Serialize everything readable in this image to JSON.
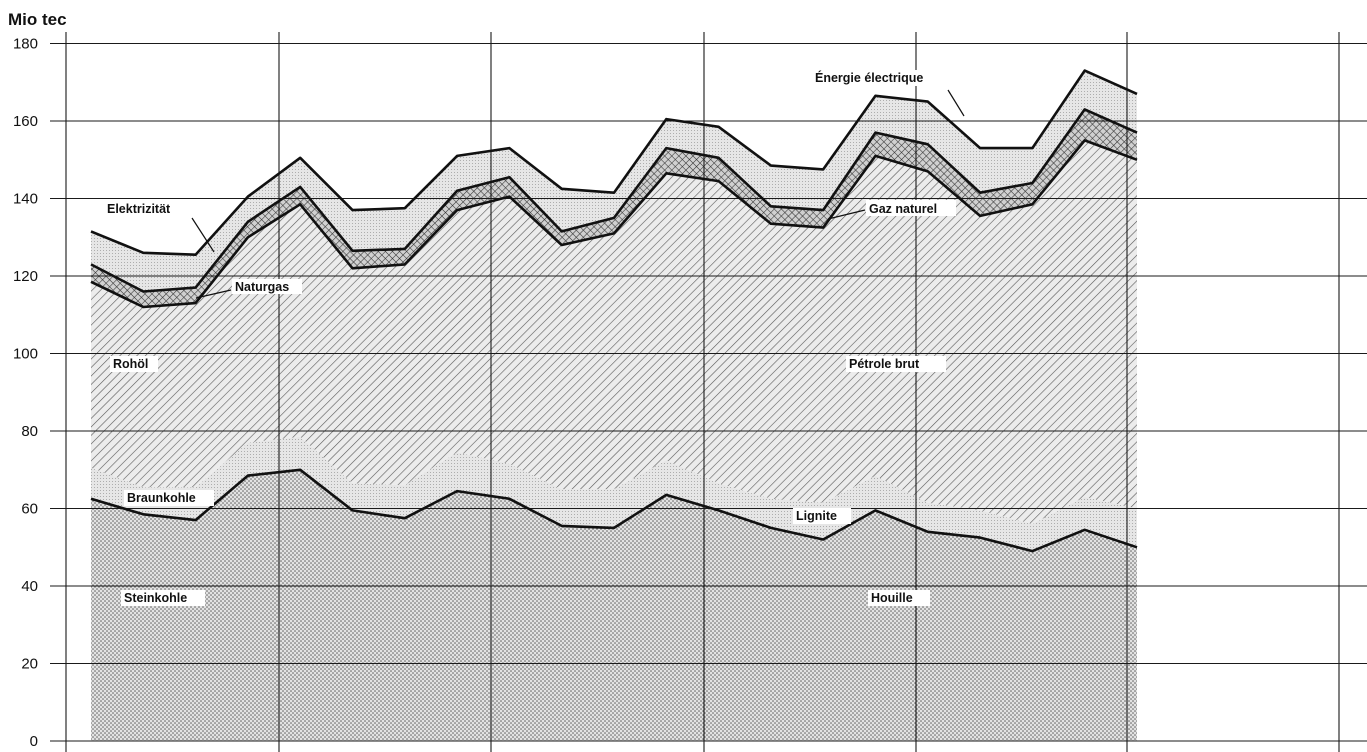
{
  "chart_data": {
    "type": "area",
    "stacked": true,
    "ylabel": "Mio tec",
    "ylim": [
      0,
      180
    ],
    "yticks": [
      0,
      20,
      40,
      60,
      80,
      100,
      120,
      140,
      160,
      180
    ],
    "x_index": [
      1,
      2,
      3,
      4,
      5,
      6,
      7,
      8,
      9,
      10,
      11,
      12,
      13,
      14,
      15,
      16,
      17,
      18,
      19,
      20,
      21
    ],
    "grid": true,
    "series": [
      {
        "name": "Steinkohle / Houille",
        "pattern": "dots",
        "cumulative": [
          62.5,
          58.5,
          57,
          68.5,
          70,
          59.5,
          57.5,
          64.5,
          62.5,
          55.5,
          55,
          63.5,
          59.5,
          55,
          52,
          59.5,
          54,
          52.5,
          49,
          54.5,
          50
        ]
      },
      {
        "name": "Braunkohle / Lignite",
        "pattern": "light",
        "cumulative": [
          70.5,
          65.5,
          65.5,
          77,
          78.5,
          66.5,
          66,
          74.5,
          71.5,
          65,
          65,
          72.5,
          66.5,
          62.5,
          61.5,
          68.5,
          61.5,
          59.5,
          56,
          63,
          60
        ]
      },
      {
        "name": "Rohöl / Pétrole brut",
        "pattern": "hatch",
        "cumulative": [
          118.5,
          112,
          113,
          130,
          138.5,
          122,
          123,
          137,
          140.5,
          128,
          131,
          146.5,
          144.5,
          133.5,
          132.5,
          151,
          147,
          135.5,
          138.5,
          155,
          150
        ]
      },
      {
        "name": "Naturgas / Gaz naturel",
        "pattern": "crosshatch",
        "cumulative": [
          123,
          116,
          117,
          134,
          143,
          126.5,
          127,
          142,
          145.5,
          131.5,
          135,
          153,
          150.5,
          138,
          137,
          157,
          154,
          141.5,
          144,
          163,
          157
        ]
      },
      {
        "name": "Elektrizität / Énergie électrique",
        "pattern": "light",
        "cumulative": [
          131.5,
          126,
          125.5,
          140.5,
          150.5,
          137,
          137.5,
          151,
          153,
          142.5,
          141.5,
          160.5,
          158.5,
          148.5,
          147.5,
          166.5,
          165,
          153,
          153,
          173,
          167
        ]
      }
    ],
    "annotations": [
      "Elektrizität",
      "Énergie électrique",
      "Naturgas",
      "Gaz naturel",
      "Rohöl",
      "Pétrole brut",
      "Braunkohle",
      "Lignite",
      "Steinkohle",
      "Houille"
    ]
  }
}
